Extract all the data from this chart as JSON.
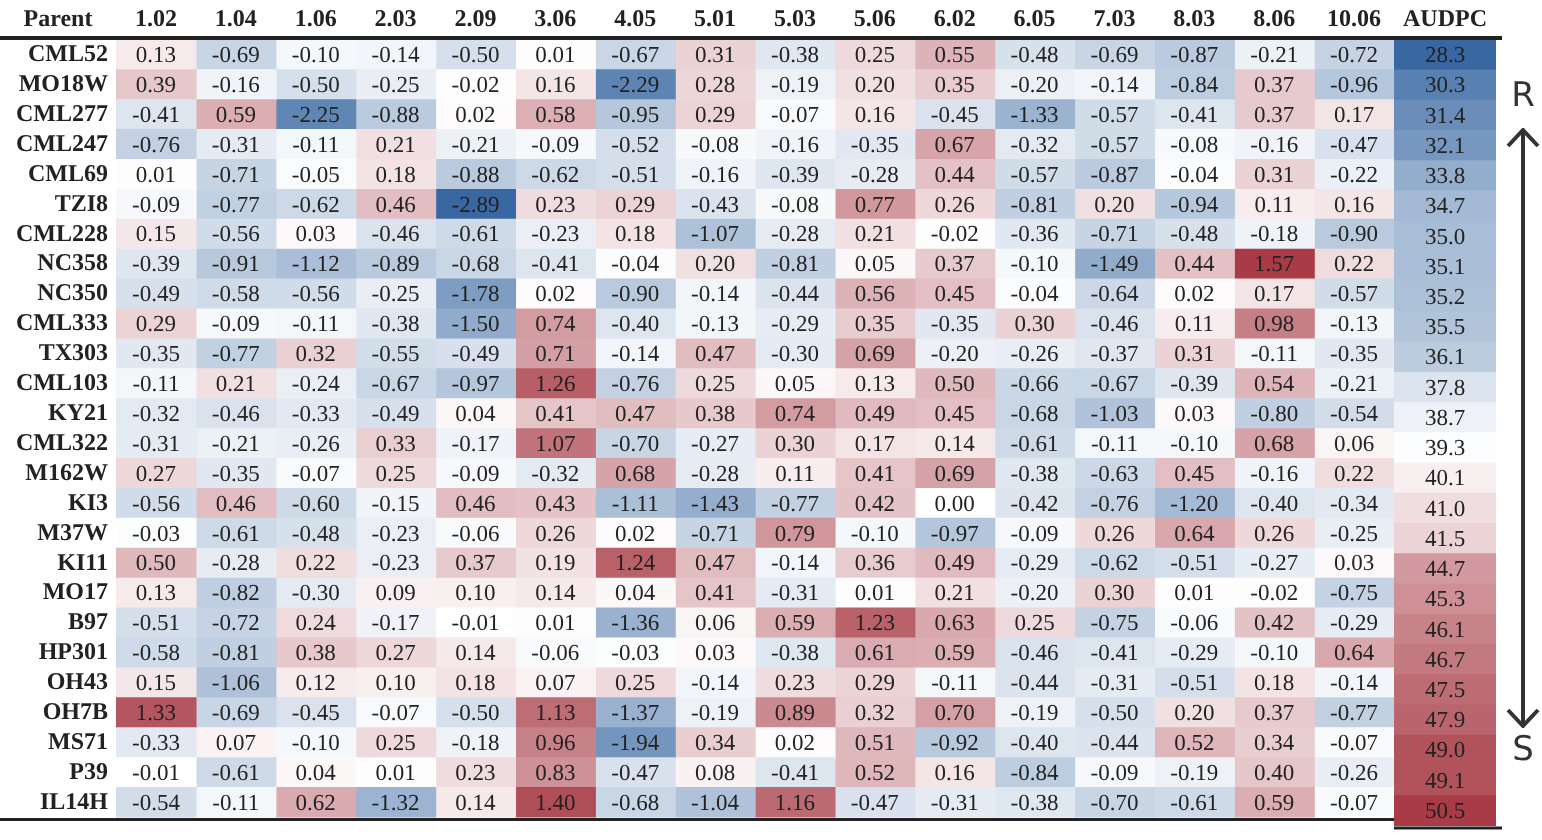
{
  "chart_data": [
    {
      "type": "heatmap",
      "ylabel": "Parent",
      "data_labels": true,
      "categories": [
        "1.02",
        "1.04",
        "1.06",
        "2.03",
        "2.09",
        "3.06",
        "4.05",
        "5.01",
        "5.03",
        "5.06",
        "6.02",
        "6.05",
        "7.03",
        "8.03",
        "8.06",
        "10.06"
      ],
      "y_categories": [
        "CML52",
        "MO18W",
        "CML277",
        "CML247",
        "CML69",
        "TZI8",
        "CML228",
        "NC358",
        "NC350",
        "CML333",
        "TX303",
        "CML103",
        "KY21",
        "CML322",
        "M162W",
        "KI3",
        "M37W",
        "KI11",
        "MO17",
        "B97",
        "HP301",
        "OH43",
        "OH7B",
        "MS71",
        "P39",
        "IL14H"
      ],
      "cells": [
        [
          0.13,
          -0.69,
          -0.1,
          -0.14,
          -0.5,
          0.01,
          -0.67,
          0.31,
          -0.38,
          0.25,
          0.55,
          -0.48,
          -0.69,
          -0.87,
          -0.21,
          -0.72
        ],
        [
          0.39,
          -0.16,
          -0.5,
          -0.25,
          -0.02,
          0.16,
          -2.29,
          0.28,
          -0.19,
          0.2,
          0.35,
          -0.2,
          -0.14,
          -0.84,
          0.37,
          -0.96
        ],
        [
          -0.41,
          0.59,
          -2.25,
          -0.88,
          0.02,
          0.58,
          -0.95,
          0.29,
          -0.07,
          0.16,
          -0.45,
          -1.33,
          -0.57,
          -0.41,
          0.37,
          0.17
        ],
        [
          -0.76,
          -0.31,
          -0.11,
          0.21,
          -0.21,
          -0.09,
          -0.52,
          -0.08,
          -0.16,
          -0.35,
          0.67,
          -0.32,
          -0.57,
          -0.08,
          -0.16,
          -0.47
        ],
        [
          0.01,
          -0.71,
          -0.05,
          0.18,
          -0.88,
          -0.62,
          -0.51,
          -0.16,
          -0.39,
          -0.28,
          0.44,
          -0.57,
          -0.87,
          -0.04,
          0.31,
          -0.22
        ],
        [
          -0.09,
          -0.77,
          -0.62,
          0.46,
          -2.89,
          0.23,
          0.29,
          -0.43,
          -0.08,
          0.77,
          0.26,
          -0.81,
          0.2,
          -0.94,
          0.11,
          0.16
        ],
        [
          0.15,
          -0.56,
          0.03,
          -0.46,
          -0.61,
          -0.23,
          0.18,
          -1.07,
          -0.28,
          0.21,
          -0.02,
          -0.36,
          -0.71,
          -0.48,
          -0.18,
          -0.9
        ],
        [
          -0.39,
          -0.91,
          -1.12,
          -0.89,
          -0.68,
          -0.41,
          -0.04,
          0.2,
          -0.81,
          0.05,
          0.37,
          -0.1,
          -1.49,
          0.44,
          1.57,
          0.22
        ],
        [
          -0.49,
          -0.58,
          -0.56,
          -0.25,
          -1.78,
          0.02,
          -0.9,
          -0.14,
          -0.44,
          0.56,
          0.45,
          -0.04,
          -0.64,
          0.02,
          0.17,
          -0.57
        ],
        [
          0.29,
          -0.09,
          -0.11,
          -0.38,
          -1.5,
          0.74,
          -0.4,
          -0.13,
          -0.29,
          0.35,
          -0.35,
          0.3,
          -0.46,
          0.11,
          0.98,
          -0.13
        ],
        [
          -0.35,
          -0.77,
          0.32,
          -0.55,
          -0.49,
          0.71,
          -0.14,
          0.47,
          -0.3,
          0.69,
          -0.2,
          -0.26,
          -0.37,
          0.31,
          -0.11,
          -0.35
        ],
        [
          -0.11,
          0.21,
          -0.24,
          -0.67,
          -0.97,
          1.26,
          -0.76,
          0.25,
          0.05,
          0.13,
          0.5,
          -0.66,
          -0.67,
          -0.39,
          0.54,
          -0.21
        ],
        [
          -0.32,
          -0.46,
          -0.33,
          -0.49,
          0.04,
          0.41,
          0.47,
          0.38,
          0.74,
          0.49,
          0.45,
          -0.68,
          -1.03,
          0.03,
          -0.8,
          -0.54
        ],
        [
          -0.31,
          -0.21,
          -0.26,
          0.33,
          -0.17,
          1.07,
          -0.7,
          -0.27,
          0.3,
          0.17,
          0.14,
          -0.61,
          -0.11,
          -0.1,
          0.68,
          0.06
        ],
        [
          0.27,
          -0.35,
          -0.07,
          0.25,
          -0.09,
          -0.32,
          0.68,
          -0.28,
          0.11,
          0.41,
          0.69,
          -0.38,
          -0.63,
          0.45,
          -0.16,
          0.22
        ],
        [
          -0.56,
          0.46,
          -0.6,
          -0.15,
          0.46,
          0.43,
          -1.11,
          -1.43,
          -0.77,
          0.42,
          0.0,
          -0.42,
          -0.76,
          -1.2,
          -0.4,
          -0.34
        ],
        [
          -0.03,
          -0.61,
          -0.48,
          -0.23,
          -0.06,
          0.26,
          0.02,
          -0.71,
          0.79,
          -0.1,
          -0.97,
          -0.09,
          0.26,
          0.64,
          0.26,
          -0.25
        ],
        [
          0.5,
          -0.28,
          0.22,
          -0.23,
          0.37,
          0.19,
          1.24,
          0.47,
          -0.14,
          0.36,
          0.49,
          -0.29,
          -0.62,
          -0.51,
          -0.27,
          0.03
        ],
        [
          0.13,
          -0.82,
          -0.3,
          0.09,
          0.1,
          0.14,
          0.04,
          0.41,
          -0.31,
          0.01,
          0.21,
          -0.2,
          0.3,
          0.01,
          -0.02,
          -0.75
        ],
        [
          -0.51,
          -0.72,
          0.24,
          -0.17,
          -0.01,
          0.01,
          -1.36,
          0.06,
          0.59,
          1.23,
          0.63,
          0.25,
          -0.75,
          -0.06,
          0.42,
          -0.29
        ],
        [
          -0.58,
          -0.81,
          0.38,
          0.27,
          0.14,
          -0.06,
          -0.03,
          0.03,
          -0.38,
          0.61,
          0.59,
          -0.46,
          -0.41,
          -0.29,
          -0.1,
          0.64
        ],
        [
          0.15,
          -1.06,
          0.12,
          0.1,
          0.18,
          0.07,
          0.25,
          -0.14,
          0.23,
          0.29,
          -0.11,
          -0.44,
          -0.31,
          -0.51,
          0.18,
          -0.14
        ],
        [
          1.33,
          -0.69,
          -0.45,
          -0.07,
          -0.5,
          1.13,
          -1.37,
          -0.19,
          0.89,
          0.32,
          0.7,
          -0.19,
          -0.5,
          0.2,
          0.37,
          -0.77
        ],
        [
          -0.33,
          0.07,
          -0.1,
          0.25,
          -0.18,
          0.96,
          -1.94,
          0.34,
          0.02,
          0.51,
          -0.92,
          -0.4,
          -0.44,
          0.52,
          0.34,
          -0.07
        ],
        [
          -0.01,
          -0.61,
          0.04,
          0.01,
          0.23,
          0.83,
          -0.47,
          0.08,
          -0.41,
          0.52,
          0.16,
          -0.84,
          -0.09,
          -0.19,
          0.4,
          -0.26
        ],
        [
          -0.54,
          -0.11,
          0.62,
          -1.32,
          0.14,
          1.4,
          -0.68,
          -1.04,
          1.16,
          -0.47,
          -0.31,
          -0.38,
          -0.7,
          -0.61,
          0.59,
          -0.07
        ]
      ],
      "cell_labels": [
        [
          "0.13",
          "-0.69",
          "-0.10",
          "-0.14",
          "-0.50",
          "0.01",
          "-0.67",
          "0.31",
          "-0.38",
          "0.25",
          "0.55",
          "-0.48",
          "-0.69",
          "-0.87",
          "-0.21",
          "-0.72"
        ],
        [
          "0.39",
          "-0.16",
          "-0.50",
          "-0.25",
          "-0.02",
          "0.16",
          "-2.29",
          "0.28",
          "-0.19",
          "0.20",
          "0.35",
          "-0.20",
          "-0.14",
          "-0.84",
          "0.37",
          "-0.96"
        ],
        [
          "-0.41",
          "0.59",
          "-2.25",
          "-0.88",
          "0.02",
          "0.58",
          "-0.95",
          "0.29",
          "-0.07",
          "0.16",
          "-0.45",
          "-1.33",
          "-0.57",
          "-0.41",
          "0.37",
          "0.17"
        ],
        [
          "-0.76",
          "-0.31",
          "-0.11",
          "0.21",
          "-0.21",
          "-0.09",
          "-0.52",
          "-0.08",
          "-0.16",
          "-0.35",
          "0.67",
          "-0.32",
          "-0.57",
          "-0.08",
          "-0.16",
          "-0.47"
        ],
        [
          "0.01",
          "-0.71",
          "-0.05",
          "0.18",
          "-0.88",
          "-0.62",
          "-0.51",
          "-0.16",
          "-0.39",
          "-0.28",
          "0.44",
          "-0.57",
          "-0.87",
          "-0.04",
          "0.31",
          "-0.22"
        ],
        [
          "-0.09",
          "-0.77",
          "-0.62",
          "0.46",
          "-2.89",
          "0.23",
          "0.29",
          "-0.43",
          "-0.08",
          "0.77",
          "0.26",
          "-0.81",
          "0.20",
          "-0.94",
          "0.11",
          "0.16"
        ],
        [
          "0.15",
          "-0.56",
          "0.03",
          "-0.46",
          "-0.61",
          "-0.23",
          "0.18",
          "-1.07",
          "-0.28",
          "0.21",
          "-0.02",
          "-0.36",
          "-0.71",
          "-0.48",
          "-0.18",
          "-0.90"
        ],
        [
          "-0.39",
          "-0.91",
          "-1.12",
          "-0.89",
          "-0.68",
          "-0.41",
          "-0.04",
          "0.20",
          "-0.81",
          "0.05",
          "0.37",
          "-0.10",
          "-1.49",
          "0.44",
          "1.57",
          "0.22"
        ],
        [
          "-0.49",
          "-0.58",
          "-0.56",
          "-0.25",
          "-1.78",
          "0.02",
          "-0.90",
          "-0.14",
          "-0.44",
          "0.56",
          "0.45",
          "-0.04",
          "-0.64",
          "0.02",
          "0.17",
          "-0.57"
        ],
        [
          "0.29",
          "-0.09",
          "-0.11",
          "-0.38",
          "-1.50",
          "0.74",
          "-0.40",
          "-0.13",
          "-0.29",
          "0.35",
          "-0.35",
          "0.30",
          "-0.46",
          "0.11",
          "0.98",
          "-0.13"
        ],
        [
          "-0.35",
          "-0.77",
          "0.32",
          "-0.55",
          "-0.49",
          "0.71",
          "-0.14",
          "0.47",
          "-0.30",
          "0.69",
          "-0.20",
          "-0.26",
          "-0.37",
          "0.31",
          "-0.11",
          "-0.35"
        ],
        [
          "-0.11",
          "0.21",
          "-0.24",
          "-0.67",
          "-0.97",
          "1.26",
          "-0.76",
          "0.25",
          "0.05",
          "0.13",
          "0.50",
          "-0.66",
          "-0.67",
          "-0.39",
          "0.54",
          "-0.21"
        ],
        [
          "-0.32",
          "-0.46",
          "-0.33",
          "-0.49",
          "0.04",
          "0.41",
          "0.47",
          "0.38",
          "0.74",
          "0.49",
          "0.45",
          "-0.68",
          "-1.03",
          "0.03",
          "-0.80",
          "-0.54"
        ],
        [
          "-0.31",
          "-0.21",
          "-0.26",
          "0.33",
          "-0.17",
          "1.07",
          "-0.70",
          "-0.27",
          "0.30",
          "0.17",
          "0.14",
          "-0.61",
          "-0.11",
          "-0.10",
          "0.68",
          "0.06"
        ],
        [
          "0.27",
          "-0.35",
          "-0.07",
          "0.25",
          "-0.09",
          "-0.32",
          "0.68",
          "-0.28",
          "0.11",
          "0.41",
          "0.69",
          "-0.38",
          "-0.63",
          "0.45",
          "-0.16",
          "0.22"
        ],
        [
          "-0.56",
          "0.46",
          "-0.60",
          "-0.15",
          "0.46",
          "0.43",
          "-1.11",
          "-1.43",
          "-0.77",
          "0.42",
          "0.00",
          "-0.42",
          "-0.76",
          "-1.20",
          "-0.40",
          "-0.34"
        ],
        [
          "-0.03",
          "-0.61",
          "-0.48",
          "-0.23",
          "-0.06",
          "0.26",
          "0.02",
          "-0.71",
          "0.79",
          "-0.10",
          "-0.97",
          "-0.09",
          "0.26",
          "0.64",
          "0.26",
          "-0.25"
        ],
        [
          "0.50",
          "-0.28",
          "0.22",
          "-0.23",
          "0.37",
          "0.19",
          "1.24",
          "0.47",
          "-0.14",
          "0.36",
          "0.49",
          "-0.29",
          "-0.62",
          "-0.51",
          "-0.27",
          "0.03"
        ],
        [
          "0.13",
          "-0.82",
          "-0.30",
          "0.09",
          "0.10",
          "0.14",
          "0.04",
          "0.41",
          "-0.31",
          "0.01",
          "0.21",
          "-0.20",
          "0.30",
          "0.01",
          "-0.02",
          "-0.75"
        ],
        [
          "-0.51",
          "-0.72",
          "0.24",
          "-0.17",
          "-0.01",
          "0.01",
          "-1.36",
          "0.06",
          "0.59",
          "1.23",
          "0.63",
          "0.25",
          "-0.75",
          "-0.06",
          "0.42",
          "-0.29"
        ],
        [
          "-0.58",
          "-0.81",
          "0.38",
          "0.27",
          "0.14",
          "-0.06",
          "-0.03",
          "0.03",
          "-0.38",
          "0.61",
          "0.59",
          "-0.46",
          "-0.41",
          "-0.29",
          "-0.10",
          "0.64"
        ],
        [
          "0.15",
          "-1.06",
          "0.12",
          "0.10",
          "0.18",
          "0.07",
          "0.25",
          "-0.14",
          "0.23",
          "0.29",
          "-0.11",
          "-0.44",
          "-0.31",
          "-0.51",
          "0.18",
          "-0.14"
        ],
        [
          "1.33",
          "-0.69",
          "-0.45",
          "-0.07",
          "-0.50",
          "1.13",
          "-1.37",
          "-0.19",
          "0.89",
          "0.32",
          "0.70",
          "-0.19",
          "-0.50",
          "0.20",
          "0.37",
          "-0.77"
        ],
        [
          "-0.33",
          "0.07",
          "-0.10",
          "0.25",
          "-0.18",
          "0.96",
          "-1.94",
          "0.34",
          "0.02",
          "0.51",
          "-0.92",
          "-0.40",
          "-0.44",
          "0.52",
          "0.34",
          "-0.07"
        ],
        [
          "-0.01",
          "-0.61",
          "0.04",
          "0.01",
          "0.23",
          "0.83",
          "-0.47",
          "0.08",
          "-0.41",
          "0.52",
          "0.16",
          "-0.84",
          "-0.09",
          "-0.19",
          "0.40",
          "-0.26"
        ],
        [
          "-0.54",
          "-0.11",
          "0.62",
          "-1.32",
          "0.14",
          "1.40",
          "-0.68",
          "-1.04",
          "1.16",
          "-0.47",
          "-0.31",
          "-0.38",
          "-0.70",
          "-0.61",
          "0.59",
          "-0.07"
        ]
      ]
    },
    {
      "type": "heatmap",
      "data_labels": true,
      "tick_labels": "x",
      "annotations": [
        "R",
        "S"
      ],
      "y_categories": [
        null,
        null,
        null,
        null,
        null,
        null,
        null,
        null,
        null,
        null,
        null,
        null,
        null,
        null,
        null,
        null,
        null,
        null,
        null,
        null,
        null,
        null,
        null,
        null,
        null,
        null
      ],
      "categories": [
        "AUDPC"
      ],
      "cells": [
        [
          28.3
        ],
        [
          30.3
        ],
        [
          31.4
        ],
        [
          32.1
        ],
        [
          33.8
        ],
        [
          34.7
        ],
        [
          35.0
        ],
        [
          35.1
        ],
        [
          35.2
        ],
        [
          35.5
        ],
        [
          36.1
        ],
        [
          37.8
        ],
        [
          38.7
        ],
        [
          39.3
        ],
        [
          40.1
        ],
        [
          41.0
        ],
        [
          41.5
        ],
        [
          44.7
        ],
        [
          45.3
        ],
        [
          46.1
        ],
        [
          46.7
        ],
        [
          47.5
        ],
        [
          47.9
        ],
        [
          49.0
        ],
        [
          49.1
        ],
        [
          50.5
        ]
      ],
      "cell_labels": [
        [
          "28.3"
        ],
        [
          "30.3"
        ],
        [
          "31.4"
        ],
        [
          "32.1"
        ],
        [
          "33.8"
        ],
        [
          "34.7"
        ],
        [
          "35.0"
        ],
        [
          "35.1"
        ],
        [
          "35.2"
        ],
        [
          "35.5"
        ],
        [
          "36.1"
        ],
        [
          "37.8"
        ],
        [
          "38.7"
        ],
        [
          "39.3"
        ],
        [
          "40.1"
        ],
        [
          "41.0"
        ],
        [
          "41.5"
        ],
        [
          "44.7"
        ],
        [
          "45.3"
        ],
        [
          "46.1"
        ],
        [
          "46.7"
        ],
        [
          "47.5"
        ],
        [
          "47.9"
        ],
        [
          "49.0"
        ],
        [
          "49.1"
        ],
        [
          "50.5"
        ]
      ]
    }
  ]
}
